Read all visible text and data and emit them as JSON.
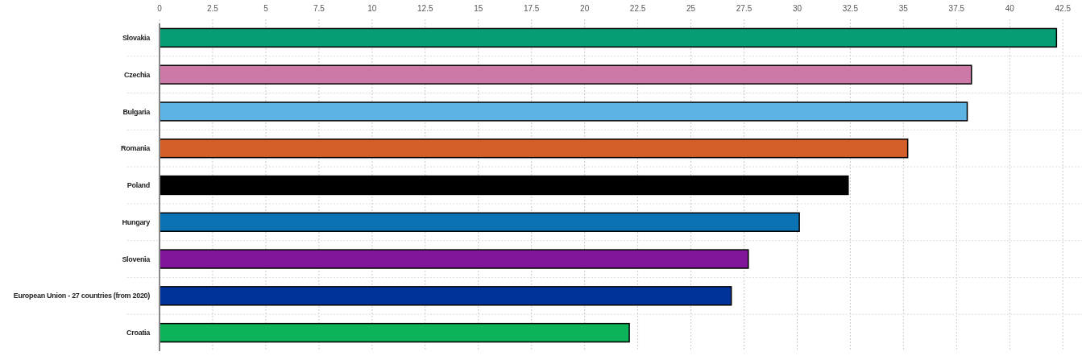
{
  "chart_data": {
    "type": "bar",
    "orientation": "horizontal",
    "categories": [
      "Slovakia",
      "Czechia",
      "Bulgaria",
      "Romania",
      "Poland",
      "Hungary",
      "Slovenia",
      "European Union - 27 countries (from 2020)",
      "Croatia"
    ],
    "values": [
      42.2,
      38.2,
      38.0,
      35.2,
      32.4,
      30.1,
      27.7,
      26.9,
      22.1
    ],
    "colors": [
      "#079d74",
      "#cc79a7",
      "#5db3e4",
      "#d55f28",
      "#000000",
      "#0a72b3",
      "#81169b",
      "#003399",
      "#0cb358"
    ],
    "xlim": [
      0,
      43.4
    ],
    "xticks": [
      0,
      {
        "value": 2.5,
        "label": "2.5"
      },
      5,
      {
        "value": 7.5,
        "label": "7.5"
      },
      10,
      {
        "value": 12.5,
        "label": "12.5"
      },
      15,
      {
        "value": 17.5,
        "label": "17.5"
      },
      20,
      {
        "value": 22.5,
        "label": "22.5"
      },
      25,
      {
        "value": 27.5,
        "label": "27.5"
      },
      30,
      {
        "value": 32.5,
        "label": "32.5"
      },
      35,
      {
        "value": 37.5,
        "label": "37.5"
      },
      40,
      {
        "value": 42.5,
        "label": "42.5"
      }
    ],
    "grid": true
  }
}
